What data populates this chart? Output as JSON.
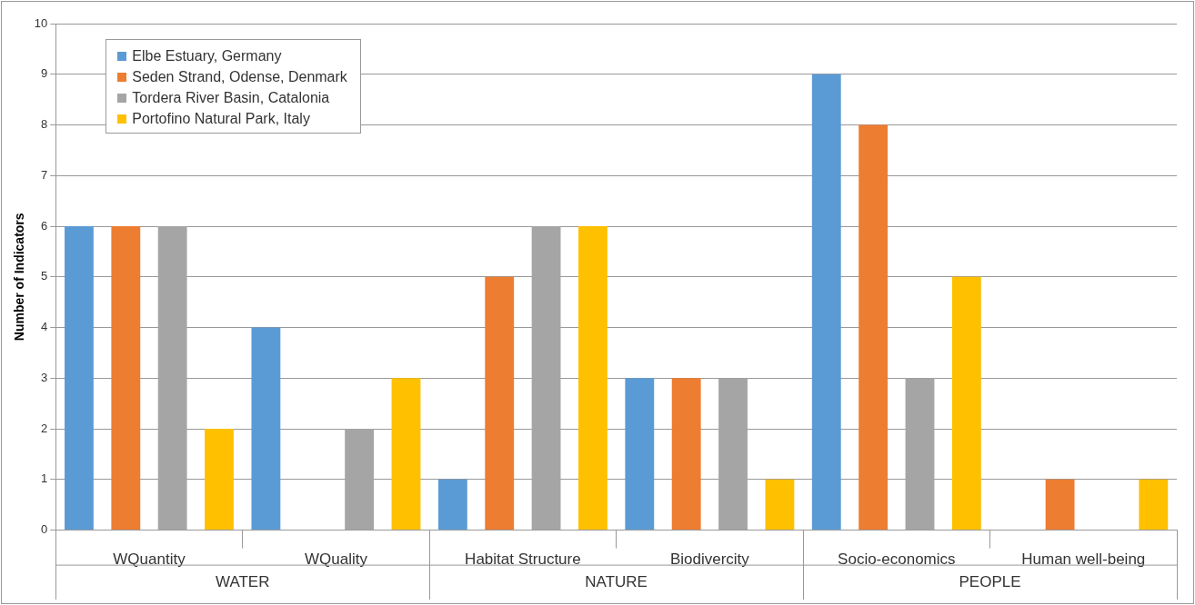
{
  "chart_data": {
    "type": "bar",
    "ylabel": "Number of Indicators",
    "categories": [
      "WQuantity",
      "WQuality",
      "Habitat Structure",
      "Biodivercity",
      "Socio-economics",
      "Human well-being"
    ],
    "annotations": [
      "WATER",
      "NATURE",
      "PEOPLE"
    ],
    "series": [
      {
        "name": "Elbe Estuary, Germany",
        "color": "#5b9bd5",
        "values": [
          6,
          4,
          1,
          3,
          9,
          0
        ]
      },
      {
        "name": "Seden Strand, Odense, Denmark",
        "color": "#ed7d31",
        "values": [
          6,
          0,
          5,
          3,
          8,
          1
        ]
      },
      {
        "name": "Tordera River Basin, Catalonia",
        "color": "#a5a5a5",
        "values": [
          6,
          2,
          6,
          3,
          3,
          0
        ]
      },
      {
        "name": "Portofino Natural Park, Italy",
        "color": "#ffc000",
        "values": [
          2,
          3,
          6,
          1,
          5,
          1
        ]
      }
    ],
    "ylim": [
      0,
      10
    ],
    "yticks": [
      0,
      1,
      2,
      3,
      4,
      5,
      6,
      7,
      8,
      9,
      10
    ],
    "grid": "y",
    "legend": "top left"
  }
}
